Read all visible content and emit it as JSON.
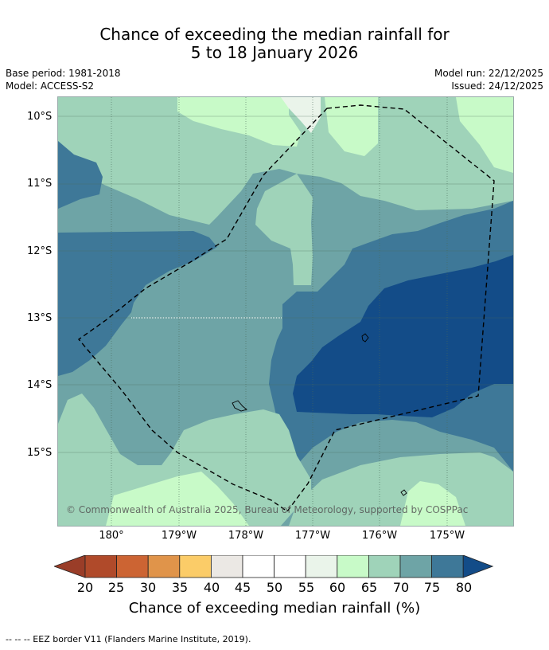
{
  "title": {
    "line1": "Chance of exceeding the median rainfall for",
    "line2": "5 to 18 January 2026"
  },
  "meta": {
    "base_period": "Base period: 1981-2018",
    "model": "Model: ACCESS-S2",
    "model_run": "Model run: 22/12/2025",
    "issued": "Issued: 24/12/2025"
  },
  "map": {
    "lat_labels": [
      "10°S",
      "11°S",
      "12°S",
      "13°S",
      "14°S",
      "15°S"
    ],
    "lon_labels": [
      "180°",
      "179°W",
      "178°W",
      "177°W",
      "176°W",
      "175°W"
    ],
    "copyright": "© Commonwealth of Australia 2025, Bureau of Meteorology, supported by COSPPac",
    "region_colors": {
      "c55_60": "#eaf4ea",
      "c60_65": "#c8fac8",
      "c65_70": "#9fd3b9",
      "c70_75": "#6ea4a6",
      "c75_80": "#3e7898",
      "c80_plus": "#134c88"
    }
  },
  "colorbar": {
    "ticks": [
      "20",
      "25",
      "30",
      "35",
      "40",
      "45",
      "50",
      "55",
      "60",
      "65",
      "70",
      "75",
      "80"
    ],
    "colors": [
      "#b04a2a",
      "#cc6433",
      "#e0944a",
      "#fbcc68",
      "#ebe8e4",
      "#ffffff",
      "#ffffff",
      "#eaf4ea",
      "#c8fac8",
      "#9fd3b9",
      "#6ea4a6",
      "#3e7898"
    ],
    "under_color": "#9a3d28",
    "over_color": "#134c88",
    "label": "Chance of exceeding median rainfall (%)"
  },
  "legend": {
    "eez_text": "--  --  -- EEZ border V11 (Flanders Marine Institute, 2019)."
  }
}
